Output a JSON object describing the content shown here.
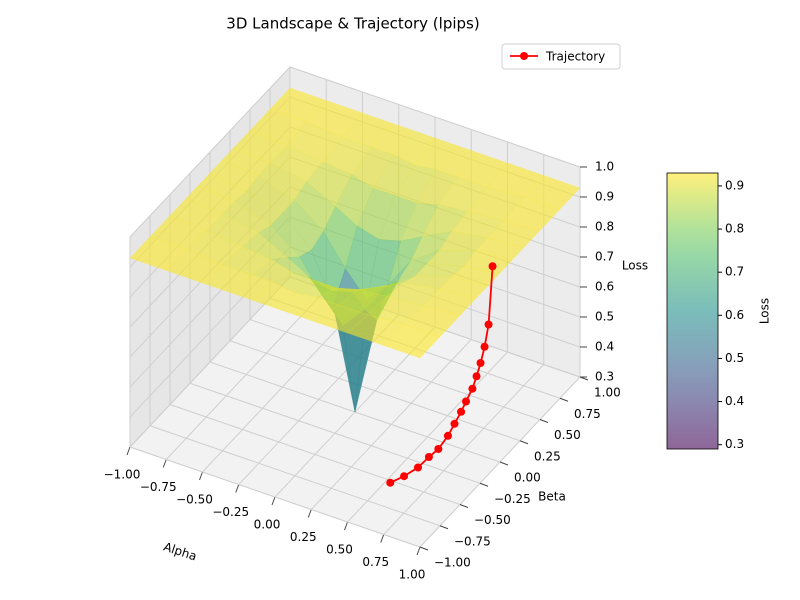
{
  "chart_data": {
    "type": "surface3d",
    "title": "3D Landscape & Trajectory (lpips)",
    "xlabel": "Alpha",
    "ylabel": "Beta",
    "zlabel": "Loss",
    "xlim": [
      -1,
      1
    ],
    "ylim": [
      -1,
      1
    ],
    "zlim": [
      0.3,
      1
    ],
    "xticks": [
      {
        "value": -1,
        "label": "−1.00"
      },
      {
        "value": -0.75,
        "label": "−0.75"
      },
      {
        "value": -0.5,
        "label": "−0.50"
      },
      {
        "value": -0.25,
        "label": "−0.25"
      },
      {
        "value": 0,
        "label": "0.00"
      },
      {
        "value": 0.25,
        "label": "0.25"
      },
      {
        "value": 0.5,
        "label": "0.50"
      },
      {
        "value": 0.75,
        "label": "0.75"
      },
      {
        "value": 1,
        "label": "1.00"
      }
    ],
    "yticks": [
      {
        "value": -1,
        "label": "−1.00"
      },
      {
        "value": -0.75,
        "label": "−0.75"
      },
      {
        "value": -0.5,
        "label": "−0.50"
      },
      {
        "value": -0.25,
        "label": "−0.25"
      },
      {
        "value": 0,
        "label": "0.00"
      },
      {
        "value": 0.25,
        "label": "0.25"
      },
      {
        "value": 0.5,
        "label": "0.50"
      },
      {
        "value": 0.75,
        "label": "0.75"
      },
      {
        "value": 1,
        "label": "1.00"
      }
    ],
    "zticks": [
      0.3,
      0.4,
      0.5,
      0.6,
      0.7,
      0.8,
      0.9,
      {
        "value": 1,
        "label": "1.0"
      }
    ],
    "grid": true,
    "surface": {
      "colormap": "viridis",
      "alpha": 0.6,
      "x": [
        -1,
        -0.75,
        -0.5,
        -0.3,
        -0.15,
        0,
        0.15,
        0.3,
        0.5,
        0.75,
        1
      ],
      "y": [
        -1,
        -0.75,
        -0.5,
        -0.3,
        -0.15,
        0,
        0.15,
        0.3,
        0.5,
        0.75,
        1
      ],
      "z": [
        [
          0.93,
          0.93,
          0.93,
          0.93,
          0.93,
          0.93,
          0.93,
          0.93,
          0.93,
          0.93,
          0.93
        ],
        [
          0.93,
          0.93,
          0.92,
          0.92,
          0.92,
          0.91,
          0.92,
          0.92,
          0.92,
          0.93,
          0.93
        ],
        [
          0.93,
          0.92,
          0.91,
          0.9,
          0.88,
          0.88,
          0.88,
          0.9,
          0.91,
          0.92,
          0.93
        ],
        [
          0.93,
          0.92,
          0.9,
          0.85,
          0.81,
          0.79,
          0.81,
          0.85,
          0.9,
          0.92,
          0.93
        ],
        [
          0.93,
          0.92,
          0.88,
          0.81,
          0.71,
          0.63,
          0.71,
          0.81,
          0.88,
          0.92,
          0.93
        ],
        [
          0.93,
          0.91,
          0.88,
          0.79,
          0.63,
          0.3,
          0.63,
          0.79,
          0.88,
          0.91,
          0.93
        ],
        [
          0.93,
          0.92,
          0.88,
          0.81,
          0.71,
          0.63,
          0.71,
          0.81,
          0.88,
          0.92,
          0.93
        ],
        [
          0.93,
          0.92,
          0.9,
          0.85,
          0.81,
          0.79,
          0.81,
          0.85,
          0.9,
          0.92,
          0.93
        ],
        [
          0.93,
          0.92,
          0.91,
          0.9,
          0.88,
          0.88,
          0.88,
          0.9,
          0.91,
          0.92,
          0.93
        ],
        [
          0.93,
          0.93,
          0.92,
          0.92,
          0.92,
          0.91,
          0.92,
          0.92,
          0.92,
          0.93,
          0.93
        ],
        [
          0.93,
          0.93,
          0.93,
          0.93,
          0.93,
          0.93,
          0.93,
          0.93,
          0.93,
          0.93,
          0.93
        ]
      ]
    },
    "series": [
      {
        "name": "Trajectory",
        "color": "#ff0000",
        "x": [
          0.59,
          0.59,
          0.59,
          0.59,
          0.59,
          0.6,
          0.6,
          0.61,
          0.62,
          0.63,
          0.63,
          0.62,
          0.6,
          0.57,
          0.53
        ],
        "y": [
          0.65,
          0.6,
          0.55,
          0.5,
          0.45,
          0.38,
          0.3,
          0.22,
          0.12,
          0.02,
          -0.1,
          -0.2,
          -0.3,
          -0.42,
          -0.52
        ],
        "z": [
          0.7,
          0.52,
          0.46,
          0.42,
          0.39,
          0.37,
          0.35,
          0.34,
          0.33,
          0.32,
          0.31,
          0.31,
          0.3,
          0.3,
          0.3
        ]
      }
    ],
    "legend": "upper right",
    "colorbar": {
      "label": "Loss",
      "lim": [
        0.29,
        0.93
      ],
      "ticks": [
        0.3,
        0.4,
        0.5,
        0.6,
        0.7,
        0.8,
        0.9
      ]
    }
  }
}
